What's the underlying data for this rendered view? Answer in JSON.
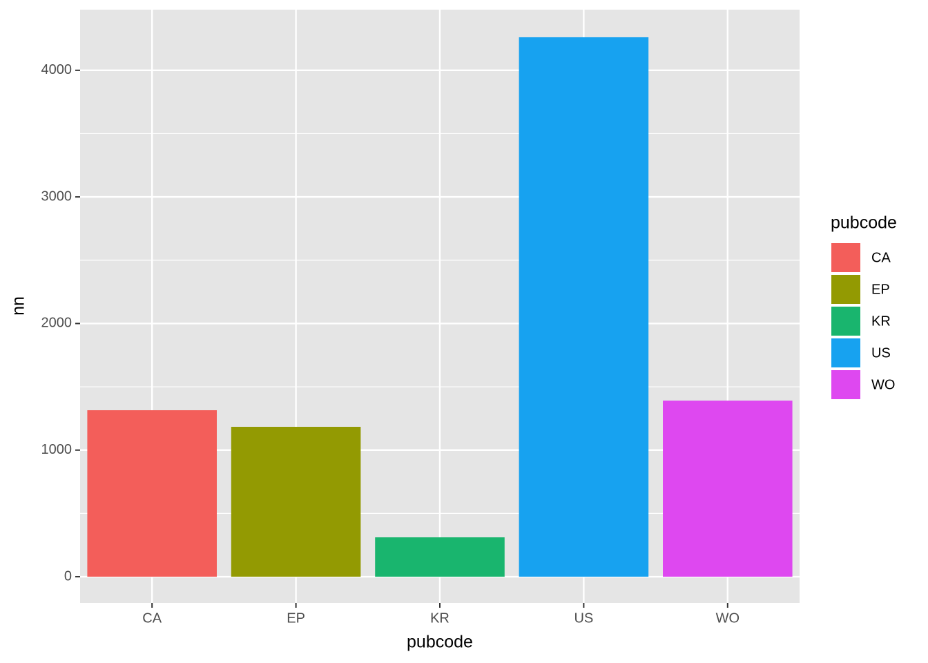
{
  "chart_data": {
    "type": "bar",
    "x_label": "pubcode",
    "y_label": "nn",
    "legend_title": "pubcode",
    "categories": [
      "CA",
      "EP",
      "KR",
      "US",
      "WO"
    ],
    "values": [
      1315,
      1184,
      311,
      4261,
      1391
    ],
    "colors": [
      "#F35E5A",
      "#939A02",
      "#19B56E",
      "#17A2F0",
      "#DE48F0"
    ],
    "ylim": [
      -207,
      4479
    ],
    "yticks": [
      0,
      1000,
      2000,
      3000,
      4000
    ],
    "grid": true,
    "legend": "right"
  }
}
